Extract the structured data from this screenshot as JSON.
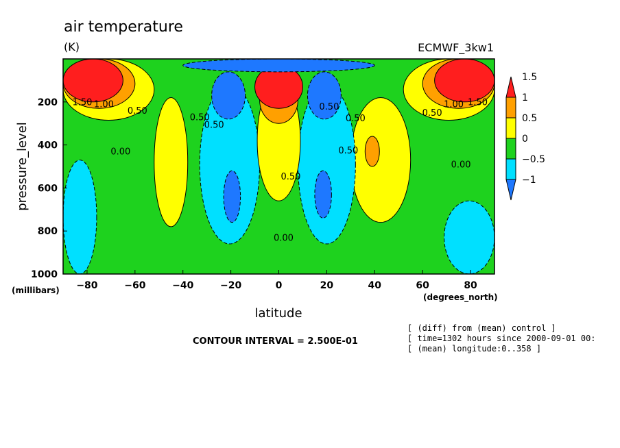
{
  "chart_data": {
    "type": "heatmap",
    "title": "air temperature",
    "units": "(K)",
    "dataset": "ECMWF_3kw1",
    "xlabel": "latitude",
    "ylabel": "pressure_level",
    "x_unit_label": "(degrees_north)",
    "y_unit_label": "(millibars)",
    "xlim": [
      -90,
      90
    ],
    "ylim": [
      1000,
      0
    ],
    "x_ticks": [
      -80,
      -60,
      -40,
      -20,
      0,
      20,
      40,
      60,
      80
    ],
    "x_tick_labels": [
      "−80",
      "−60",
      "−40",
      "−20",
      "0",
      "20",
      "40",
      "60",
      "80"
    ],
    "y_ticks": [
      200,
      400,
      600,
      800,
      1000
    ],
    "y_tick_labels": [
      "200",
      "400",
      "600",
      "800",
      "1000"
    ],
    "contour_interval_text": "CONTOUR INTERVAL = 2.500E-01",
    "info_lines": [
      "[ (diff) from (mean) control ]",
      "[ time=1302 hours since 2000-09-01 00:",
      "[ (mean) longitude:0..358 ]"
    ],
    "colorbar": {
      "levels": [
        -1,
        -0.5,
        0,
        0.5,
        1,
        1.5
      ],
      "labels": [
        "−1",
        "−0.5",
        "0",
        "0.5",
        "1",
        "1.5"
      ],
      "colors": [
        "#1e78ff",
        "#00e0ff",
        "#1ed21e",
        "#ffff00",
        "#ffa000",
        "#ff1e1e"
      ]
    },
    "contour_labels": [
      {
        "text": "1.50",
        "lat": -82,
        "p": 215
      },
      {
        "text": "1.00",
        "lat": -73,
        "p": 225
      },
      {
        "text": "0.50",
        "lat": -59,
        "p": 255
      },
      {
        "text": "1.00",
        "lat": 73,
        "p": 225
      },
      {
        "text": "1.50",
        "lat": 83,
        "p": 215
      },
      {
        "text": "0.50",
        "lat": 64,
        "p": 265
      },
      {
        "text": "0.00",
        "lat": -66,
        "p": 445
      },
      {
        "text": "0.00",
        "lat": 76,
        "p": 505
      },
      {
        "text": "0.50",
        "lat": -33,
        "p": 285
      },
      {
        "text": "0.50",
        "lat": -27,
        "p": 320
      },
      {
        "text": "0.50",
        "lat": 21,
        "p": 235
      },
      {
        "text": "0.50",
        "lat": 32,
        "p": 290
      },
      {
        "text": "0.50",
        "lat": 29,
        "p": 440
      },
      {
        "text": "0.50",
        "lat": 5,
        "p": 560
      },
      {
        "text": "0.00",
        "lat": 2,
        "p": 845
      }
    ],
    "fields": [
      {
        "level": 0,
        "shape": "ground",
        "desc": "base 0 to 0.5"
      },
      {
        "level": -0.5,
        "region": "south-surface",
        "lat": [
          -90,
          -76
        ],
        "p": [
          470,
          1000
        ]
      },
      {
        "level": -0.5,
        "region": "north-surface",
        "lat": [
          69,
          90
        ],
        "p": [
          660,
          1000
        ]
      },
      {
        "level": 0.5,
        "region": "south-upper",
        "lat": [
          -90,
          -52
        ],
        "p": [
          0,
          285
        ]
      },
      {
        "level": 1,
        "region": "south-polar-upper",
        "lat": [
          -90,
          -60
        ],
        "p": [
          0,
          230
        ]
      },
      {
        "level": 1.5,
        "region": "south-polar-jet",
        "lat": [
          -90,
          -65
        ],
        "p": [
          0,
          200
        ]
      },
      {
        "level": 0.5,
        "region": "north-upper",
        "lat": [
          52,
          90
        ],
        "p": [
          0,
          285
        ]
      },
      {
        "level": 1,
        "region": "north-polar-upper",
        "lat": [
          60,
          90
        ],
        "p": [
          0,
          230
        ]
      },
      {
        "level": 1.5,
        "region": "north-polar-jet",
        "lat": [
          65,
          90
        ],
        "p": [
          0,
          200
        ]
      },
      {
        "level": 0.5,
        "region": "south-mid-band",
        "lat": [
          -52,
          -38
        ],
        "p": [
          180,
          780
        ]
      },
      {
        "level": 0.5,
        "region": "north-mid-band",
        "lat": [
          30,
          55
        ],
        "p": [
          180,
          760
        ]
      },
      {
        "level": 1,
        "region": "north-mid-core",
        "lat": [
          36,
          42
        ],
        "p": [
          360,
          500
        ]
      },
      {
        "level": -0.5,
        "region": "south-tropics-cool",
        "lat": [
          -33,
          -8
        ],
        "p": [
          120,
          860
        ]
      },
      {
        "level": -0.5,
        "region": "north-tropics-cool",
        "lat": [
          8,
          32
        ],
        "p": [
          120,
          860
        ]
      },
      {
        "level": -1,
        "region": "south-upper-cold",
        "lat": [
          -28,
          -14
        ],
        "p": [
          60,
          280
        ]
      },
      {
        "level": -1,
        "region": "north-upper-cold",
        "lat": [
          12,
          26
        ],
        "p": [
          60,
          280
        ]
      },
      {
        "level": -1,
        "region": "south-lower-cold",
        "lat": [
          -23,
          -16
        ],
        "p": [
          520,
          760
        ]
      },
      {
        "level": -1,
        "region": "north-lower-cold",
        "lat": [
          15,
          22
        ],
        "p": [
          520,
          740
        ]
      },
      {
        "level": 0.5,
        "region": "equatorial-column",
        "lat": [
          -9,
          9
        ],
        "p": [
          100,
          660
        ]
      },
      {
        "level": 1,
        "region": "equatorial-upper",
        "lat": [
          -8,
          8
        ],
        "p": [
          80,
          300
        ]
      },
      {
        "level": 1.5,
        "region": "equatorial-top",
        "lat": [
          -10,
          10
        ],
        "p": [
          30,
          230
        ]
      },
      {
        "level": -1,
        "region": "stratosphere-cold",
        "lat": [
          -40,
          40
        ],
        "p": [
          0,
          60
        ]
      }
    ]
  }
}
